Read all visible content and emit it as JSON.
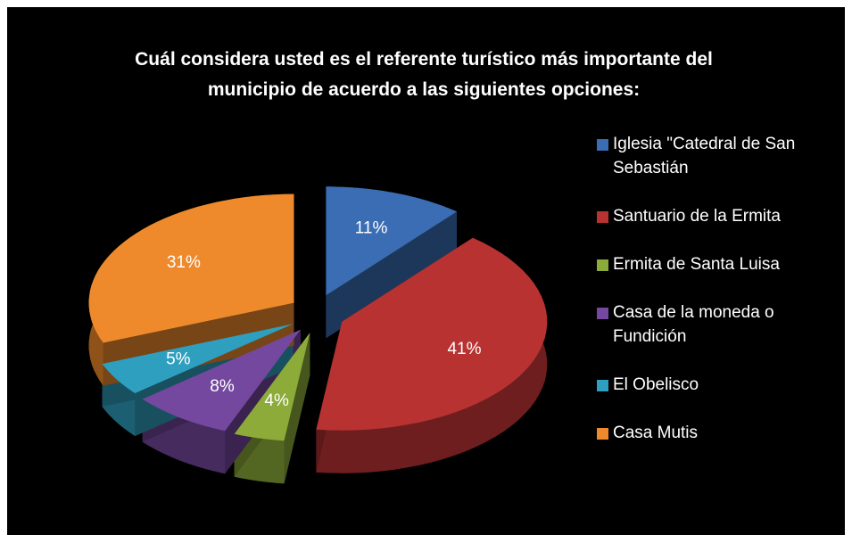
{
  "chart_data": {
    "type": "pie",
    "title": "Cuál considera usted es el referente turístico más importante del municipio de acuerdo a las siguientes opciones:",
    "categories": [
      "Iglesia \"Catedral de San Sebastián",
      "Santuario de la Ermita",
      "Ermita de Santa Luisa",
      "Casa de la moneda o Fundición",
      "El Obelisco",
      "Casa Mutis"
    ],
    "values": [
      11,
      41,
      4,
      8,
      5,
      31
    ],
    "value_labels": [
      "11%",
      "41%",
      "4%",
      "8%",
      "5%",
      "31%"
    ],
    "colors": [
      "#3a6db3",
      "#b83232",
      "#8cab39",
      "#74489e",
      "#2f9fbf",
      "#ee8a2c"
    ],
    "legend": "right"
  }
}
